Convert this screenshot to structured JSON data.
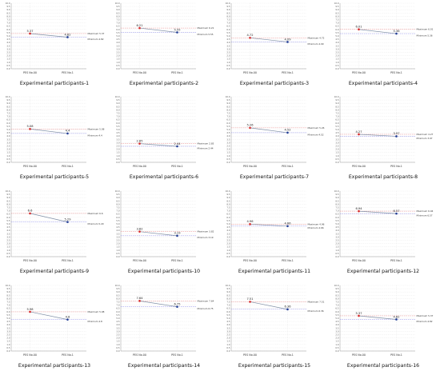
{
  "chart_data": [
    {
      "type": "line",
      "title": "Experimental participants-1",
      "categories": [
        "PES No.00",
        "PES No.1"
      ],
      "values": [
        5.37,
        4.82
      ],
      "data_labels": [
        "5.37",
        "4.82"
      ],
      "max_label": "Maximum 5.37",
      "min_label": "Minimum 4.82",
      "ylim": [
        0,
        10
      ],
      "yticks": [
        "0.0",
        "0.5",
        "1.0",
        "1.5",
        "2.0",
        "2.5",
        "3.0",
        "3.5",
        "4.0",
        "4.5",
        "5.0",
        "5.5",
        "6.0",
        "6.5",
        "7.0",
        "7.5",
        "8.0",
        "8.5",
        "9.0",
        "9.5",
        "10.0"
      ],
      "grid": true,
      "colors": {
        "start": "#d62728",
        "end": "#1f3a93",
        "line": "#7f8fa6",
        "max_line": "#e88888",
        "min_line": "#8888e8"
      }
    },
    {
      "type": "line",
      "title": "Experimental participants-2",
      "categories": [
        "PES No.00",
        "PES No.1"
      ],
      "values": [
        6.21,
        5.55
      ],
      "data_labels": [
        "6.21",
        "5.55"
      ],
      "max_label": "Maximum 6.21",
      "min_label": "Minimum 5.55",
      "ylim": [
        0,
        10
      ],
      "yticks": [
        "0.0",
        "0.5",
        "1.0",
        "1.5",
        "2.0",
        "2.5",
        "3.0",
        "3.5",
        "4.0",
        "4.5",
        "5.0",
        "5.5",
        "6.0",
        "6.5",
        "7.0",
        "7.5",
        "8.0",
        "8.5",
        "9.0",
        "9.5",
        "10.0"
      ],
      "grid": true,
      "colors": {
        "start": "#d62728",
        "end": "#1f3a93",
        "line": "#7f8fa6",
        "max_line": "#e88888",
        "min_line": "#8888e8"
      }
    },
    {
      "type": "line",
      "title": "Experimental participants-3",
      "categories": [
        "PES No.00",
        "PES No.1"
      ],
      "values": [
        4.72,
        4.09
      ],
      "data_labels": [
        "4.72",
        "4.09"
      ],
      "max_label": "Maximum 4.72",
      "min_label": "Minimum 4.09",
      "ylim": [
        0,
        10
      ],
      "yticks": [
        "0.0",
        "0.5",
        "1.0",
        "1.5",
        "2.0",
        "2.5",
        "3.0",
        "3.5",
        "4.0",
        "4.5",
        "5.0",
        "5.5",
        "6.0",
        "6.5",
        "7.0",
        "7.5",
        "8.0",
        "8.5",
        "9.0",
        "9.5",
        "10.0"
      ],
      "grid": true,
      "colors": {
        "start": "#d62728",
        "end": "#1f3a93",
        "line": "#7f8fa6",
        "max_line": "#e88888",
        "min_line": "#8888e8"
      }
    },
    {
      "type": "line",
      "title": "Experimental participants-4",
      "categories": [
        "PES No.00",
        "PES No.1"
      ],
      "values": [
        6.01,
        5.36
      ],
      "data_labels": [
        "6.01",
        "5.36"
      ],
      "max_label": "Maximum 6.01",
      "min_label": "Minimum 5.36",
      "ylim": [
        0,
        10
      ],
      "yticks": [
        "0.0",
        "0.5",
        "1.0",
        "1.5",
        "2.0",
        "2.5",
        "3.0",
        "3.5",
        "4.0",
        "4.5",
        "5.0",
        "5.5",
        "6.0",
        "6.5",
        "7.0",
        "7.5",
        "8.0",
        "8.5",
        "9.0",
        "9.5",
        "10.0"
      ],
      "grid": true,
      "colors": {
        "start": "#d62728",
        "end": "#1f3a93",
        "line": "#7f8fa6",
        "max_line": "#e88888",
        "min_line": "#8888e8"
      }
    },
    {
      "type": "line",
      "title": "Experimental participants-5",
      "categories": [
        "PES No.00",
        "PES No.1"
      ],
      "values": [
        5.08,
        4.4
      ],
      "data_labels": [
        "5.08",
        "4.4"
      ],
      "max_label": "Maximum 5.08",
      "min_label": "Minimum 4.4",
      "ylim": [
        0,
        10
      ],
      "yticks": [
        "0.0",
        "0.5",
        "1.0",
        "1.5",
        "2.0",
        "2.5",
        "3.0",
        "3.5",
        "4.0",
        "4.5",
        "5.0",
        "5.5",
        "6.0",
        "6.5",
        "7.0",
        "7.5",
        "8.0",
        "8.5",
        "9.0",
        "9.5",
        "10.0"
      ],
      "grid": true,
      "colors": {
        "start": "#d62728",
        "end": "#1f3a93",
        "line": "#7f8fa6",
        "max_line": "#e88888",
        "min_line": "#8888e8"
      }
    },
    {
      "type": "line",
      "title": "Experimental participants-6",
      "categories": [
        "PES No.00",
        "PES No.1"
      ],
      "values": [
        2.85,
        2.44
      ],
      "data_labels": [
        "2.85",
        "2.44"
      ],
      "max_label": "Maximum 2.85",
      "min_label": "Minimum 2.44",
      "ylim": [
        0,
        10
      ],
      "yticks": [
        "0.0",
        "0.5",
        "1.0",
        "1.5",
        "2.0",
        "2.5",
        "3.0",
        "3.5",
        "4.0",
        "4.5",
        "5.0",
        "5.5",
        "6.0",
        "6.5",
        "7.0",
        "7.5",
        "8.0",
        "8.5",
        "9.0",
        "9.5",
        "10.0"
      ],
      "grid": true,
      "colors": {
        "start": "#d62728",
        "end": "#1f3a93",
        "line": "#7f8fa6",
        "max_line": "#e88888",
        "min_line": "#8888e8"
      }
    },
    {
      "type": "line",
      "title": "Experimental participants-7",
      "categories": [
        "PES No.00",
        "PES No.1"
      ],
      "values": [
        5.26,
        4.52
      ],
      "data_labels": [
        "5.26",
        "4.52"
      ],
      "max_label": "Maximum 5.26",
      "min_label": "Minimum 4.52",
      "ylim": [
        0,
        10
      ],
      "yticks": [
        "0.0",
        "0.5",
        "1.0",
        "1.5",
        "2.0",
        "2.5",
        "3.0",
        "3.5",
        "4.0",
        "4.5",
        "5.0",
        "5.5",
        "6.0",
        "6.5",
        "7.0",
        "7.5",
        "8.0",
        "8.5",
        "9.0",
        "9.5",
        "10.0"
      ],
      "grid": true,
      "colors": {
        "start": "#d62728",
        "end": "#1f3a93",
        "line": "#7f8fa6",
        "max_line": "#e88888",
        "min_line": "#8888e8"
      }
    },
    {
      "type": "line",
      "title": "Experimental participants-8",
      "categories": [
        "PES No.00",
        "PES No.1"
      ],
      "values": [
        4.27,
        3.97
      ],
      "data_labels": [
        "4.27",
        "3.97"
      ],
      "max_label": "Maximum 4.27",
      "min_label": "Minimum 3.97",
      "ylim": [
        0,
        10
      ],
      "yticks": [
        "0.0",
        "0.5",
        "1.0",
        "1.5",
        "2.0",
        "2.5",
        "3.0",
        "3.5",
        "4.0",
        "4.5",
        "5.0",
        "5.5",
        "6.0",
        "6.5",
        "7.0",
        "7.5",
        "8.0",
        "8.5",
        "9.0",
        "9.5",
        "10.0"
      ],
      "grid": true,
      "colors": {
        "start": "#d62728",
        "end": "#1f3a93",
        "line": "#7f8fa6",
        "max_line": "#e88888",
        "min_line": "#8888e8"
      }
    },
    {
      "type": "line",
      "title": "Experimental participants-9",
      "categories": [
        "PES No.00",
        "PES No.1"
      ],
      "values": [
        6.6,
        5.29
      ],
      "data_labels": [
        "6.6",
        "5.29"
      ],
      "max_label": "Maximum 6.6",
      "min_label": "Minimum 5.29",
      "ylim": [
        0,
        10
      ],
      "yticks": [
        "0.0",
        "0.5",
        "1.0",
        "1.5",
        "2.0",
        "2.5",
        "3.0",
        "3.5",
        "4.0",
        "4.5",
        "5.0",
        "5.5",
        "6.0",
        "6.5",
        "7.0",
        "7.5",
        "8.0",
        "8.5",
        "9.0",
        "9.5",
        "10.0"
      ],
      "grid": true,
      "colors": {
        "start": "#d62728",
        "end": "#1f3a93",
        "line": "#7f8fa6",
        "max_line": "#e88888",
        "min_line": "#8888e8"
      }
    },
    {
      "type": "line",
      "title": "Experimental participants-10",
      "categories": [
        "PES No.00",
        "PES No.1"
      ],
      "values": [
        3.82,
        3.19
      ],
      "data_labels": [
        "3.82",
        "3.19"
      ],
      "max_label": "Maximum 3.82",
      "min_label": "Minimum 3.19",
      "ylim": [
        0,
        10
      ],
      "yticks": [
        "0.0",
        "0.5",
        "1.0",
        "1.5",
        "2.0",
        "2.5",
        "3.0",
        "3.5",
        "4.0",
        "4.5",
        "5.0",
        "5.5",
        "6.0",
        "6.5",
        "7.0",
        "7.5",
        "8.0",
        "8.5",
        "9.0",
        "9.5",
        "10.0"
      ],
      "grid": true,
      "colors": {
        "start": "#d62728",
        "end": "#1f3a93",
        "line": "#7f8fa6",
        "max_line": "#e88888",
        "min_line": "#8888e8"
      }
    },
    {
      "type": "line",
      "title": "Experimental participants-11",
      "categories": [
        "PES No.00",
        "PES No.1"
      ],
      "values": [
        4.96,
        4.66
      ],
      "data_labels": [
        "4.96",
        "4.66"
      ],
      "max_label": "Maximum 4.96",
      "min_label": "Minimum 4.66",
      "ylim": [
        0,
        10
      ],
      "yticks": [
        "0.0",
        "0.5",
        "1.0",
        "1.5",
        "2.0",
        "2.5",
        "3.0",
        "3.5",
        "4.0",
        "4.5",
        "5.0",
        "5.5",
        "6.0",
        "6.5",
        "7.0",
        "7.5",
        "8.0",
        "8.5",
        "9.0",
        "9.5",
        "10.0"
      ],
      "grid": true,
      "colors": {
        "start": "#d62728",
        "end": "#1f3a93",
        "line": "#7f8fa6",
        "max_line": "#e88888",
        "min_line": "#8888e8"
      }
    },
    {
      "type": "line",
      "title": "Experimental participants-12",
      "categories": [
        "PES No.00",
        "PES No.1"
      ],
      "values": [
        6.94,
        6.57
      ],
      "data_labels": [
        "6.94",
        "6.57"
      ],
      "max_label": "Maximum 6.94",
      "min_label": "Minimum 6.57",
      "ylim": [
        0,
        10
      ],
      "yticks": [
        "0.0",
        "0.5",
        "1.0",
        "1.5",
        "2.0",
        "2.5",
        "3.0",
        "3.5",
        "4.0",
        "4.5",
        "5.0",
        "5.5",
        "6.0",
        "6.5",
        "7.0",
        "7.5",
        "8.0",
        "8.5",
        "9.0",
        "9.5",
        "10.0"
      ],
      "grid": true,
      "colors": {
        "start": "#d62728",
        "end": "#1f3a93",
        "line": "#7f8fa6",
        "max_line": "#e88888",
        "min_line": "#8888e8"
      }
    },
    {
      "type": "line",
      "title": "Experimental participants-13",
      "categories": [
        "PES No.00",
        "PES No.1"
      ],
      "values": [
        5.98,
        4.8
      ],
      "data_labels": [
        "5.98",
        "4.8"
      ],
      "max_label": "Maximum 5.98",
      "min_label": "Minimum 4.8",
      "ylim": [
        0,
        10
      ],
      "yticks": [
        "0.0",
        "0.5",
        "1.0",
        "1.5",
        "2.0",
        "2.5",
        "3.0",
        "3.5",
        "4.0",
        "4.5",
        "5.0",
        "5.5",
        "6.0",
        "6.5",
        "7.0",
        "7.5",
        "8.0",
        "8.5",
        "9.0",
        "9.5",
        "10.0"
      ],
      "grid": true,
      "colors": {
        "start": "#d62728",
        "end": "#1f3a93",
        "line": "#7f8fa6",
        "max_line": "#e88888",
        "min_line": "#8888e8"
      }
    },
    {
      "type": "line",
      "title": "Experimental participants-14",
      "categories": [
        "PES No.00",
        "PES No.1"
      ],
      "values": [
        7.64,
        6.75
      ],
      "data_labels": [
        "7.64",
        "6.75"
      ],
      "max_label": "Maximum 7.64",
      "min_label": "Minimum 6.75",
      "ylim": [
        0,
        10
      ],
      "yticks": [
        "0.0",
        "0.5",
        "1.0",
        "1.5",
        "2.0",
        "2.5",
        "3.0",
        "3.5",
        "4.0",
        "4.5",
        "5.0",
        "5.5",
        "6.0",
        "6.5",
        "7.0",
        "7.5",
        "8.0",
        "8.5",
        "9.0",
        "9.5",
        "10.0"
      ],
      "grid": true,
      "colors": {
        "start": "#d62728",
        "end": "#1f3a93",
        "line": "#7f8fa6",
        "max_line": "#e88888",
        "min_line": "#8888e8"
      }
    },
    {
      "type": "line",
      "title": "Experimental participants-15",
      "categories": [
        "PES No.00",
        "PES No.1"
      ],
      "values": [
        7.51,
        6.36
      ],
      "data_labels": [
        "7.51",
        "6.36"
      ],
      "max_label": "Maximum 7.51",
      "min_label": "Minimum 6.36",
      "ylim": [
        0,
        10
      ],
      "yticks": [
        "0.0",
        "0.5",
        "1.0",
        "1.5",
        "2.0",
        "2.5",
        "3.0",
        "3.5",
        "4.0",
        "4.5",
        "5.0",
        "5.5",
        "6.0",
        "6.5",
        "7.0",
        "7.5",
        "8.0",
        "8.5",
        "9.0",
        "9.5",
        "10.0"
      ],
      "grid": true,
      "colors": {
        "start": "#d62728",
        "end": "#1f3a93",
        "line": "#7f8fa6",
        "max_line": "#e88888",
        "min_line": "#8888e8"
      }
    },
    {
      "type": "line",
      "title": "Experimental participants-16",
      "categories": [
        "PES No.00",
        "PES No.1"
      ],
      "values": [
        5.37,
        4.82
      ],
      "data_labels": [
        "5.37",
        "4.82"
      ],
      "max_label": "Maximum 5.37",
      "min_label": "Minimum 4.82",
      "ylim": [
        0,
        10
      ],
      "yticks": [
        "0.0",
        "0.5",
        "1.0",
        "1.5",
        "2.0",
        "2.5",
        "3.0",
        "3.5",
        "4.0",
        "4.5",
        "5.0",
        "5.5",
        "6.0",
        "6.5",
        "7.0",
        "7.5",
        "8.0",
        "8.5",
        "9.0",
        "9.5",
        "10.0"
      ],
      "grid": true,
      "colors": {
        "start": "#d62728",
        "end": "#1f3a93",
        "line": "#7f8fa6",
        "max_line": "#e88888",
        "min_line": "#8888e8"
      }
    }
  ]
}
